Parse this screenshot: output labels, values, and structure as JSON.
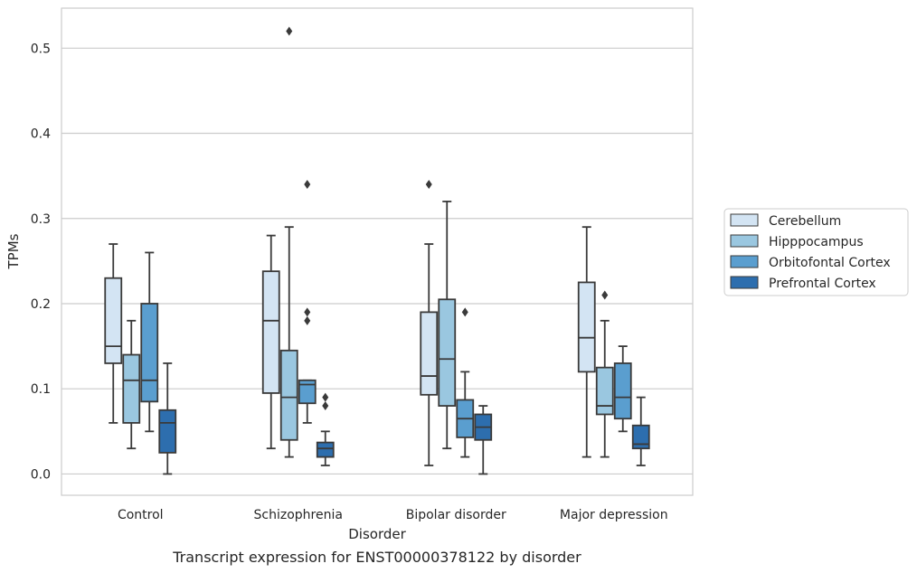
{
  "chart_data": {
    "type": "box",
    "title": "",
    "caption": "Transcript expression for ENST00000378122 by disorder",
    "xlabel": "Disorder",
    "ylabel": "TPMs",
    "ylim": [
      -0.025,
      0.547
    ],
    "yticks": [
      "0.0",
      "0.1",
      "0.2",
      "0.3",
      "0.4",
      "0.5"
    ],
    "grid": true,
    "legend_position": "right",
    "categories": [
      "Control",
      "Schizophrenia",
      "Bipolar disorder",
      "Major depression"
    ],
    "series": [
      {
        "name": "Cerebellum",
        "color": "#d3e4f3",
        "boxes": [
          {
            "whisker_low": 0.06,
            "q1": 0.13,
            "median": 0.15,
            "q3": 0.23,
            "whisker_high": 0.27,
            "outliers": []
          },
          {
            "whisker_low": 0.03,
            "q1": 0.095,
            "median": 0.18,
            "q3": 0.238,
            "whisker_high": 0.28,
            "outliers": []
          },
          {
            "whisker_low": 0.01,
            "q1": 0.093,
            "median": 0.115,
            "q3": 0.19,
            "whisker_high": 0.27,
            "outliers": [
              0.34
            ]
          },
          {
            "whisker_low": 0.02,
            "q1": 0.12,
            "median": 0.16,
            "q3": 0.225,
            "whisker_high": 0.29,
            "outliers": []
          }
        ]
      },
      {
        "name": "Hipppocampus",
        "color": "#9ac7e0",
        "boxes": [
          {
            "whisker_low": 0.03,
            "q1": 0.06,
            "median": 0.11,
            "q3": 0.14,
            "whisker_high": 0.18,
            "outliers": []
          },
          {
            "whisker_low": 0.02,
            "q1": 0.04,
            "median": 0.09,
            "q3": 0.145,
            "whisker_high": 0.29,
            "outliers": [
              0.52
            ]
          },
          {
            "whisker_low": 0.03,
            "q1": 0.08,
            "median": 0.135,
            "q3": 0.205,
            "whisker_high": 0.32,
            "outliers": []
          },
          {
            "whisker_low": 0.02,
            "q1": 0.07,
            "median": 0.08,
            "q3": 0.125,
            "whisker_high": 0.18,
            "outliers": [
              0.21
            ]
          }
        ]
      },
      {
        "name": "Orbitofontal Cortex",
        "color": "#5a9ecf",
        "boxes": [
          {
            "whisker_low": 0.05,
            "q1": 0.085,
            "median": 0.11,
            "q3": 0.2,
            "whisker_high": 0.26,
            "outliers": []
          },
          {
            "whisker_low": 0.06,
            "q1": 0.083,
            "median": 0.105,
            "q3": 0.11,
            "whisker_high": 0.11,
            "outliers": [
              0.34,
              0.19,
              0.18
            ]
          },
          {
            "whisker_low": 0.02,
            "q1": 0.043,
            "median": 0.065,
            "q3": 0.087,
            "whisker_high": 0.12,
            "outliers": [
              0.19
            ]
          },
          {
            "whisker_low": 0.05,
            "q1": 0.065,
            "median": 0.09,
            "q3": 0.13,
            "whisker_high": 0.15,
            "outliers": []
          }
        ]
      },
      {
        "name": "Prefrontal Cortex",
        "color": "#2d6eae",
        "boxes": [
          {
            "whisker_low": 0.0,
            "q1": 0.025,
            "median": 0.06,
            "q3": 0.075,
            "whisker_high": 0.13,
            "outliers": []
          },
          {
            "whisker_low": 0.01,
            "q1": 0.02,
            "median": 0.03,
            "q3": 0.037,
            "whisker_high": 0.05,
            "outliers": [
              0.09,
              0.08
            ]
          },
          {
            "whisker_low": 0.0,
            "q1": 0.04,
            "median": 0.055,
            "q3": 0.07,
            "whisker_high": 0.08,
            "outliers": []
          },
          {
            "whisker_low": 0.01,
            "q1": 0.03,
            "median": 0.035,
            "q3": 0.057,
            "whisker_high": 0.09,
            "outliers": []
          }
        ]
      }
    ]
  }
}
